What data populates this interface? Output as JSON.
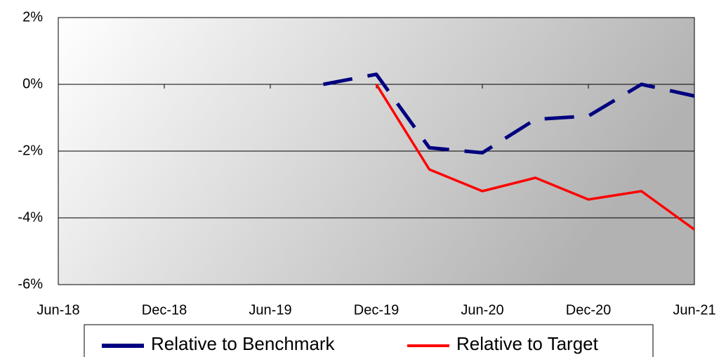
{
  "chart_data": {
    "type": "line",
    "categories": [
      "Jun-18",
      null,
      "Dec-18",
      null,
      "Jun-19",
      null,
      "Dec-19",
      null,
      "Jun-20",
      null,
      "Dec-20",
      null,
      "Jun-21"
    ],
    "series": [
      {
        "name": "Relative to Benchmark",
        "color": "#000080",
        "dashed": true,
        "values": [
          null,
          null,
          null,
          null,
          null,
          0.0,
          0.3,
          -1.9,
          -2.05,
          -1.05,
          -0.95,
          0.0,
          -0.35
        ]
      },
      {
        "name": "Relative to Target",
        "color": "#ff0000",
        "dashed": false,
        "values": [
          null,
          null,
          null,
          null,
          null,
          null,
          0.0,
          -2.55,
          -3.2,
          -2.8,
          -3.45,
          -3.2,
          -4.35
        ]
      }
    ],
    "ylim": [
      -6,
      2
    ],
    "yticks": [
      {
        "value": -6,
        "label": "-6%"
      },
      {
        "value": -4,
        "label": "-4%"
      },
      {
        "value": -2,
        "label": "-2%"
      },
      {
        "value": 0,
        "label": "0%"
      },
      {
        "value": 2,
        "label": "2%"
      }
    ],
    "grid": true,
    "legend": "bottom"
  }
}
